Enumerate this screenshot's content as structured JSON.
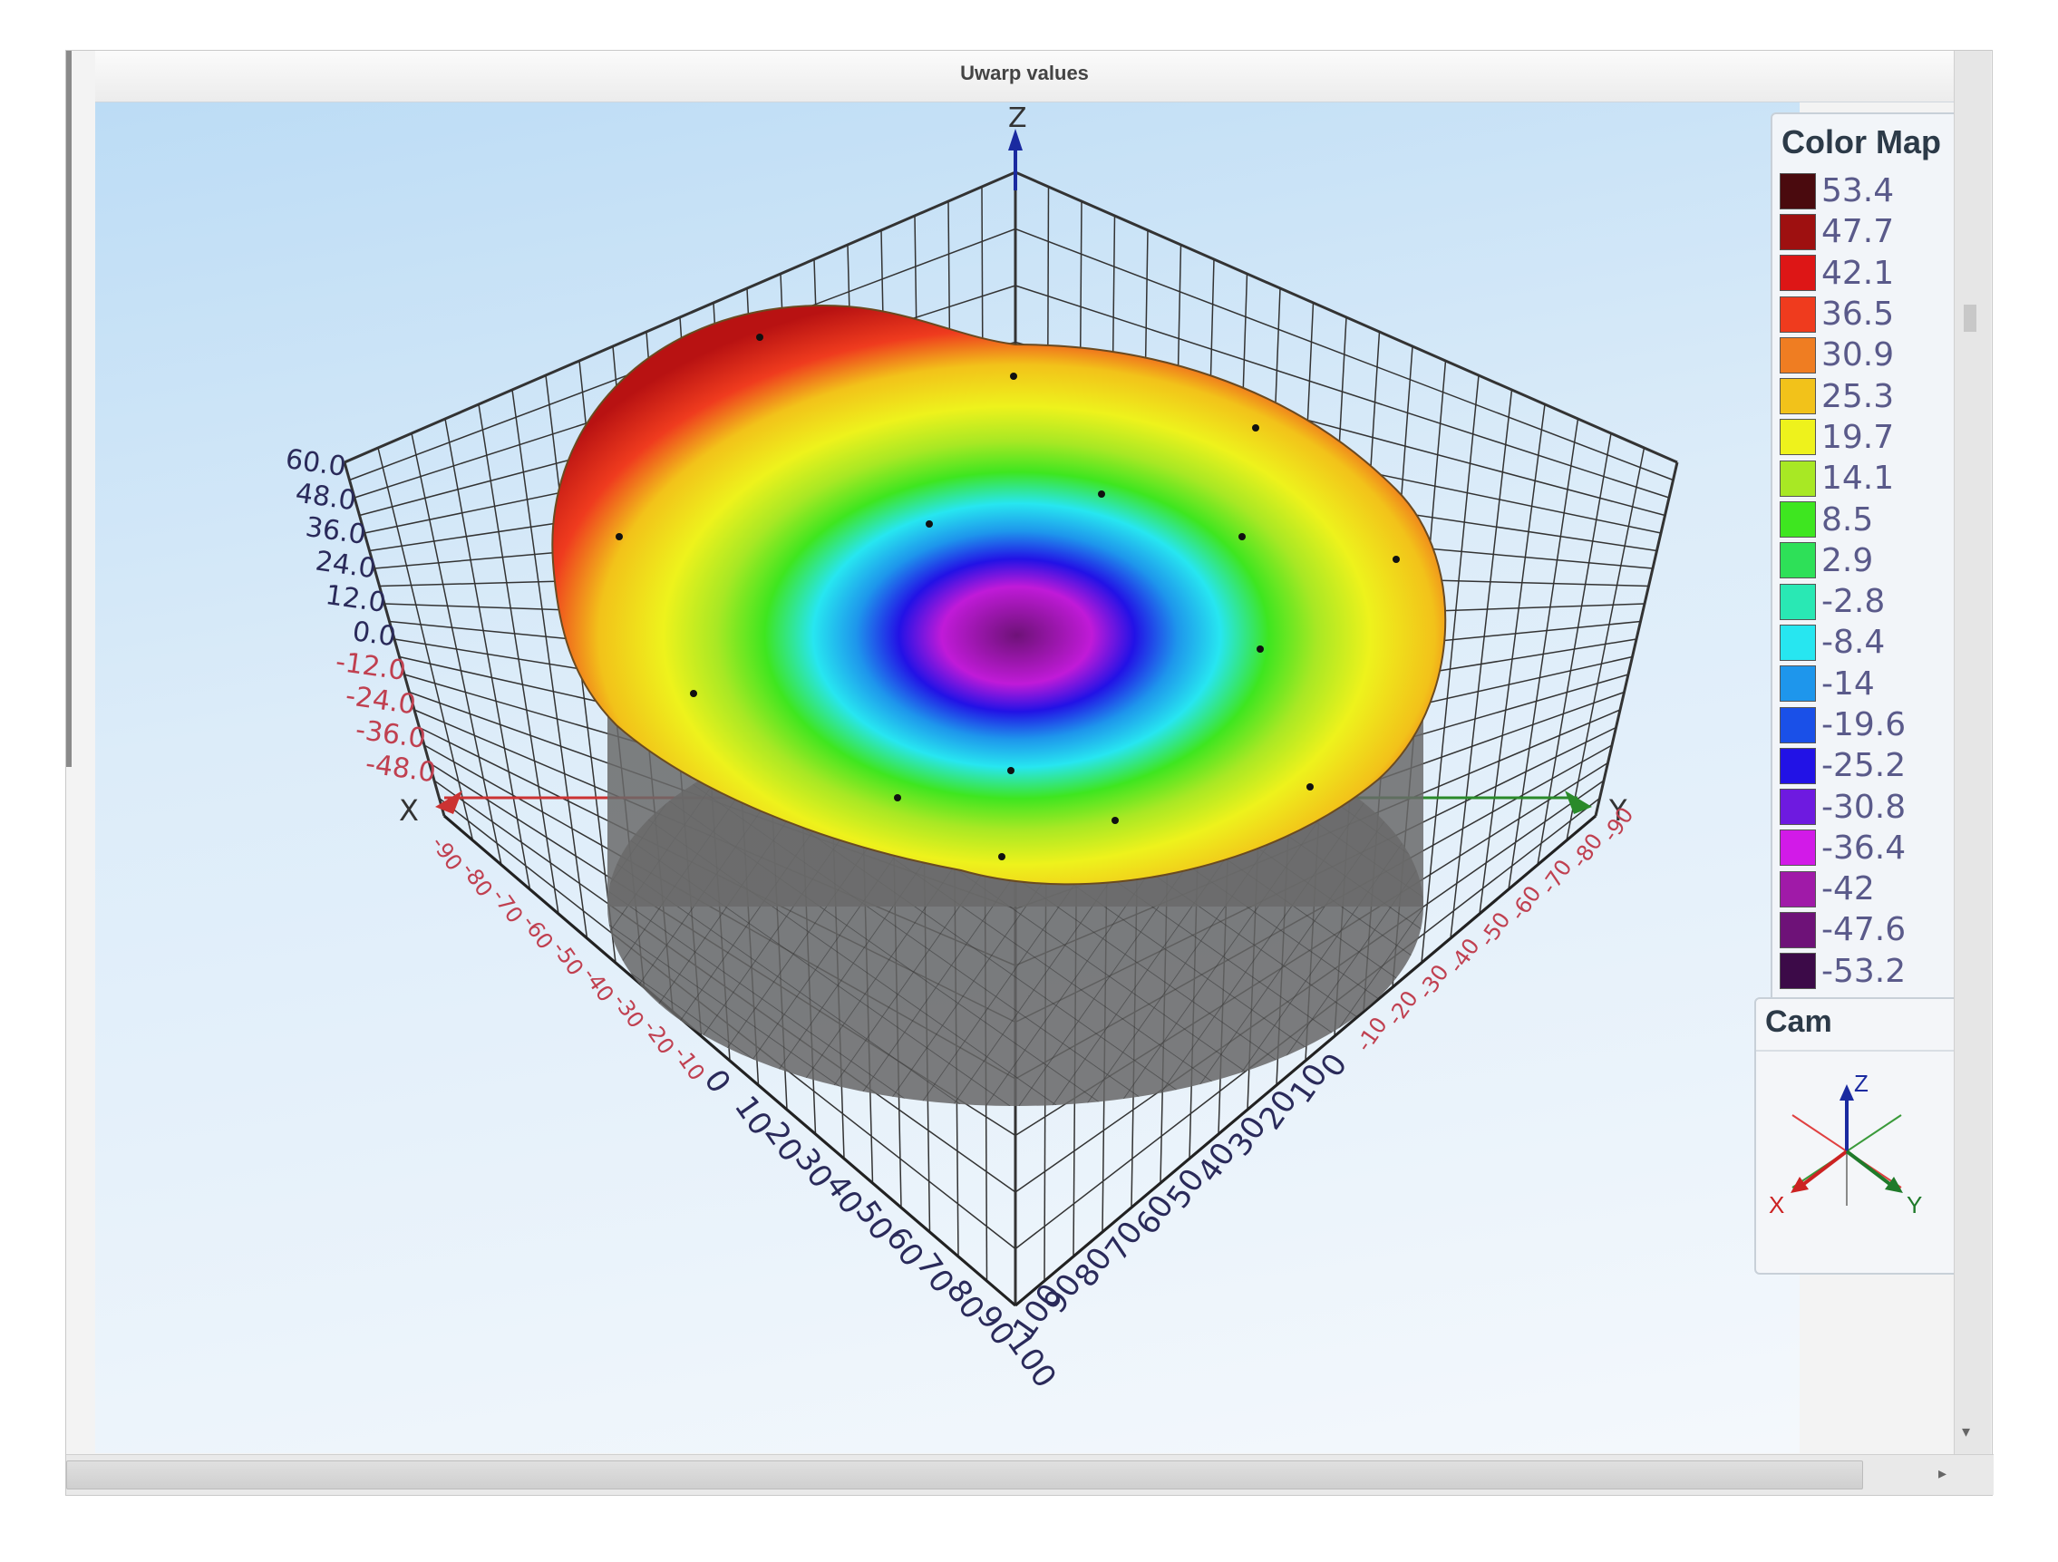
{
  "window": {
    "title": "Uwarp values"
  },
  "colormap": {
    "title": "Color Map",
    "entries": [
      {
        "label": "53.4",
        "color": "#4a0a0e"
      },
      {
        "label": "47.7",
        "color": "#9e1010"
      },
      {
        "label": "42.1",
        "color": "#dd1616"
      },
      {
        "label": "36.5",
        "color": "#ef3b1e"
      },
      {
        "label": "30.9",
        "color": "#ef7d22"
      },
      {
        "label": "25.3",
        "color": "#f2c21a"
      },
      {
        "label": "19.7",
        "color": "#eef21c"
      },
      {
        "label": "14.1",
        "color": "#a8e824"
      },
      {
        "label": "8.5",
        "color": "#3ee620"
      },
      {
        "label": "2.9",
        "color": "#2ee058"
      },
      {
        "label": "-2.8",
        "color": "#29e8b4"
      },
      {
        "label": "-8.4",
        "color": "#27e6f0"
      },
      {
        "label": "-14",
        "color": "#1e96ec"
      },
      {
        "label": "-19.6",
        "color": "#1a50e8"
      },
      {
        "label": "-25.2",
        "color": "#2212e6"
      },
      {
        "label": "-30.8",
        "color": "#6e1ae0"
      },
      {
        "label": "-36.4",
        "color": "#d21ae8"
      },
      {
        "label": "-42",
        "color": "#a01aa8"
      },
      {
        "label": "-47.6",
        "color": "#6e1278"
      },
      {
        "label": "-53.2",
        "color": "#3c0a48"
      }
    ]
  },
  "camera": {
    "title": "Cam",
    "axis_x": "X",
    "axis_y": "Y",
    "axis_z": "Z"
  },
  "chart_data": {
    "type": "surface",
    "title": "Uwarp values",
    "axes": {
      "x_label": "X",
      "y_label": "Y",
      "z_label": "Z"
    },
    "z_ticks": [
      "60.0",
      "48.0",
      "36.0",
      "24.0",
      "12.0",
      "0.0",
      "-12.0",
      "-24.0",
      "-36.0",
      "-48.0"
    ],
    "x_ticks_negative": [
      "-90",
      "-80",
      "-70",
      "-60",
      "-50",
      "-40",
      "-30",
      "-20",
      "-10"
    ],
    "x_ticks_positive": [
      "0",
      "10",
      "20",
      "30",
      "40",
      "50",
      "60",
      "70",
      "80",
      "90",
      "100"
    ],
    "y_ticks_negative": [
      "-90",
      "-80",
      "-70",
      "-60",
      "-50",
      "-40",
      "-30",
      "-20",
      "-10"
    ],
    "y_ticks_positive": [
      "0",
      "10",
      "20",
      "30",
      "40",
      "50",
      "60",
      "70",
      "80",
      "90",
      "100"
    ],
    "surface_shape": "circular bowl: high rim (up to ~53) around the -X side, depression to about -53 at the center",
    "z_range": [
      -53.2,
      53.4
    ],
    "grid": true,
    "legend_position": "right"
  }
}
